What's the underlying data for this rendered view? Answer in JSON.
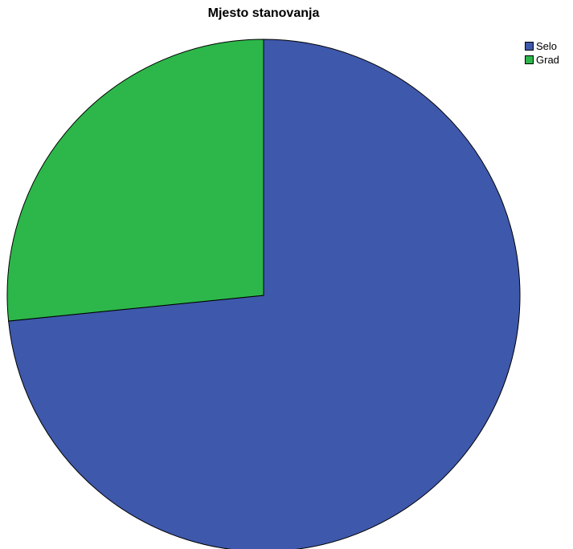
{
  "chart_data": {
    "type": "pie",
    "title": "Mjesto stanovanja",
    "categories": [
      "Selo",
      "Grad"
    ],
    "values": [
      73.4,
      26.6
    ],
    "colors": [
      "#3e58ab",
      "#2db74a"
    ],
    "legend_position": "top-right",
    "start_angle_deg": 0,
    "direction": "clockwise"
  }
}
